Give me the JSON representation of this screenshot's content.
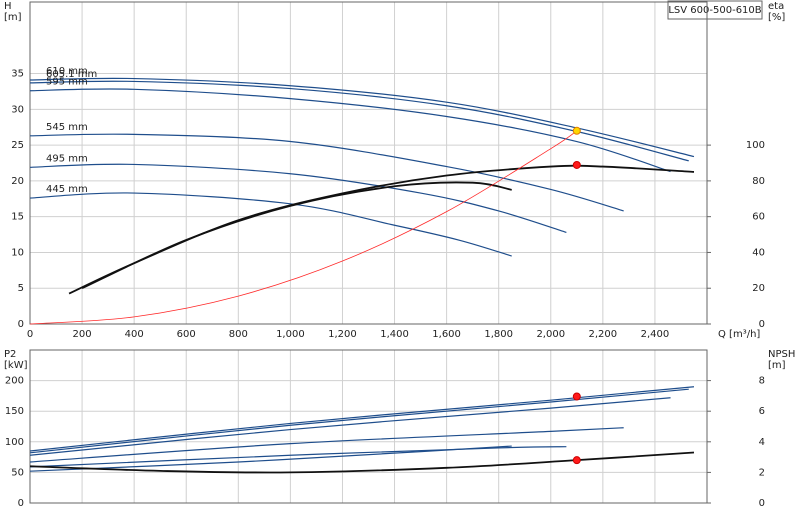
{
  "chart_data": [
    {
      "type": "line",
      "title": "LSV 600-500-610B",
      "ylabel": [
        "H",
        "[m]"
      ],
      "y2label": [
        "eta",
        "[%]"
      ],
      "xlabel": "Q [m³/h]",
      "xlim": [
        0,
        2600
      ],
      "ylim": [
        0,
        45
      ],
      "y2lim": [
        0,
        180
      ],
      "xticks": [
        0,
        200,
        400,
        600,
        800,
        {
          "value": 1000,
          "label": "1,000"
        },
        {
          "value": 1200,
          "label": "1,200"
        },
        {
          "value": 1400,
          "label": "1,400"
        },
        {
          "value": 1600,
          "label": "1,600"
        },
        {
          "value": 1800,
          "label": "1,800"
        },
        {
          "value": 2000,
          "label": "2,000"
        },
        {
          "value": 2200,
          "label": "2,200"
        },
        {
          "value": 2400,
          "label": "2,400"
        }
      ],
      "yticks": [
        0,
        5,
        10,
        15,
        20,
        25,
        30,
        35
      ],
      "y2ticks": [
        0,
        20,
        40,
        60,
        80,
        100
      ],
      "grid": true,
      "series": [
        {
          "name": "610 mm",
          "color": "#1f4e8c",
          "x": [
            0,
            400,
            1000,
            1600,
            2100,
            2550
          ],
          "values": [
            34.1,
            34.3,
            33.3,
            31,
            27.4,
            23.4
          ]
        },
        {
          "name": "605.1 mm",
          "color": "#1f4e8c",
          "x": [
            0,
            400,
            1000,
            1600,
            2100,
            2530
          ],
          "values": [
            33.7,
            33.9,
            32.9,
            30.5,
            26.9,
            22.8
          ]
        },
        {
          "name": "595 mm",
          "color": "#1f4e8c",
          "x": [
            0,
            400,
            1000,
            1600,
            2100,
            2460
          ],
          "values": [
            32.6,
            32.8,
            31.5,
            29,
            25.5,
            21.3
          ]
        },
        {
          "name": "545 mm",
          "color": "#1f4e8c",
          "x": [
            0,
            400,
            1000,
            1600,
            2000,
            2280
          ],
          "values": [
            26.3,
            26.5,
            25.5,
            22,
            18.8,
            15.8
          ]
        },
        {
          "name": "495 mm",
          "color": "#1f4e8c",
          "x": [
            0,
            400,
            1000,
            1500,
            1800,
            2060
          ],
          "values": [
            21.9,
            22.3,
            21,
            18.3,
            15.8,
            12.8
          ]
        },
        {
          "name": "445 mm",
          "color": "#1f4e8c",
          "x": [
            0,
            400,
            1000,
            1400,
            1650,
            1850
          ],
          "values": [
            17.6,
            18.3,
            16.8,
            13.8,
            11.7,
            9.5
          ]
        },
        {
          "color": "#111111",
          "axis": "y2",
          "x": [
            150,
            400,
            800,
            1200,
            1600,
            2000,
            2200,
            2550
          ],
          "values": [
            17,
            34,
            58,
            73,
            83,
            88,
            88,
            85
          ]
        },
        {
          "color": "#111111",
          "axis": "y2",
          "x": [
            200,
            600,
            1000,
            1400,
            1700,
            1850
          ],
          "values": [
            20,
            47,
            66,
            77,
            79,
            75
          ]
        },
        {
          "color": "#ff2a2a",
          "x": [
            0,
            400,
            800,
            1200,
            1600,
            2000,
            2100
          ],
          "values": [
            0,
            1,
            3.9,
            8.8,
            15.7,
            24.5,
            27
          ]
        },
        {
          "type": "scatter",
          "color": "#ffd700",
          "x": [
            2100
          ],
          "values": [
            27
          ]
        },
        {
          "type": "scatter",
          "color": "#ff1a1a",
          "axis": "y2",
          "x": [
            2100
          ],
          "values": [
            88.9
          ]
        }
      ]
    },
    {
      "type": "line",
      "ylabel": [
        "P2",
        "[kW]"
      ],
      "y2label": [
        "NPSH",
        "[m]"
      ],
      "xlim": [
        0,
        2600
      ],
      "ylim": [
        0,
        250
      ],
      "y2lim": [
        0,
        10
      ],
      "xticks": [
        0,
        200,
        400,
        600,
        800,
        1000,
        1200,
        1400,
        1600,
        1800,
        2000,
        2200,
        2400
      ],
      "yticks": [
        0,
        50,
        100,
        150,
        200
      ],
      "y2ticks": [
        0,
        2,
        4,
        6,
        8
      ],
      "grid": true,
      "series": [
        {
          "color": "#1f4e8c",
          "x": [
            0,
            1000,
            2000,
            2550
          ],
          "values": [
            85,
            130,
            168,
            190
          ]
        },
        {
          "color": "#1f4e8c",
          "x": [
            0,
            1000,
            2000,
            2530
          ],
          "values": [
            82,
            127,
            165,
            186
          ]
        },
        {
          "color": "#1f4e8c",
          "x": [
            0,
            1000,
            2000,
            2460
          ],
          "values": [
            78,
            120,
            155,
            172
          ]
        },
        {
          "color": "#1f4e8c",
          "x": [
            0,
            1000,
            2000,
            2280
          ],
          "values": [
            67,
            97,
            117,
            123
          ]
        },
        {
          "color": "#1f4e8c",
          "x": [
            0,
            1000,
            1800,
            2060
          ],
          "values": [
            59,
            78,
            90,
            92
          ]
        },
        {
          "color": "#1f4e8c",
          "x": [
            0,
            800,
            1500,
            1850
          ],
          "values": [
            52,
            67,
            84,
            93
          ]
        },
        {
          "color": "#111111",
          "axis": "y2",
          "x": [
            0,
            500,
            1000,
            1600,
            2100,
            2550
          ],
          "values": [
            2.4,
            2.1,
            2.0,
            2.3,
            2.8,
            3.3
          ]
        },
        {
          "type": "scatter",
          "color": "#ff1a1a",
          "x": [
            2100
          ],
          "values": [
            174
          ]
        },
        {
          "type": "scatter",
          "color": "#ff1a1a",
          "axis": "y2",
          "x": [
            2100
          ],
          "values": [
            2.8
          ]
        }
      ]
    }
  ]
}
